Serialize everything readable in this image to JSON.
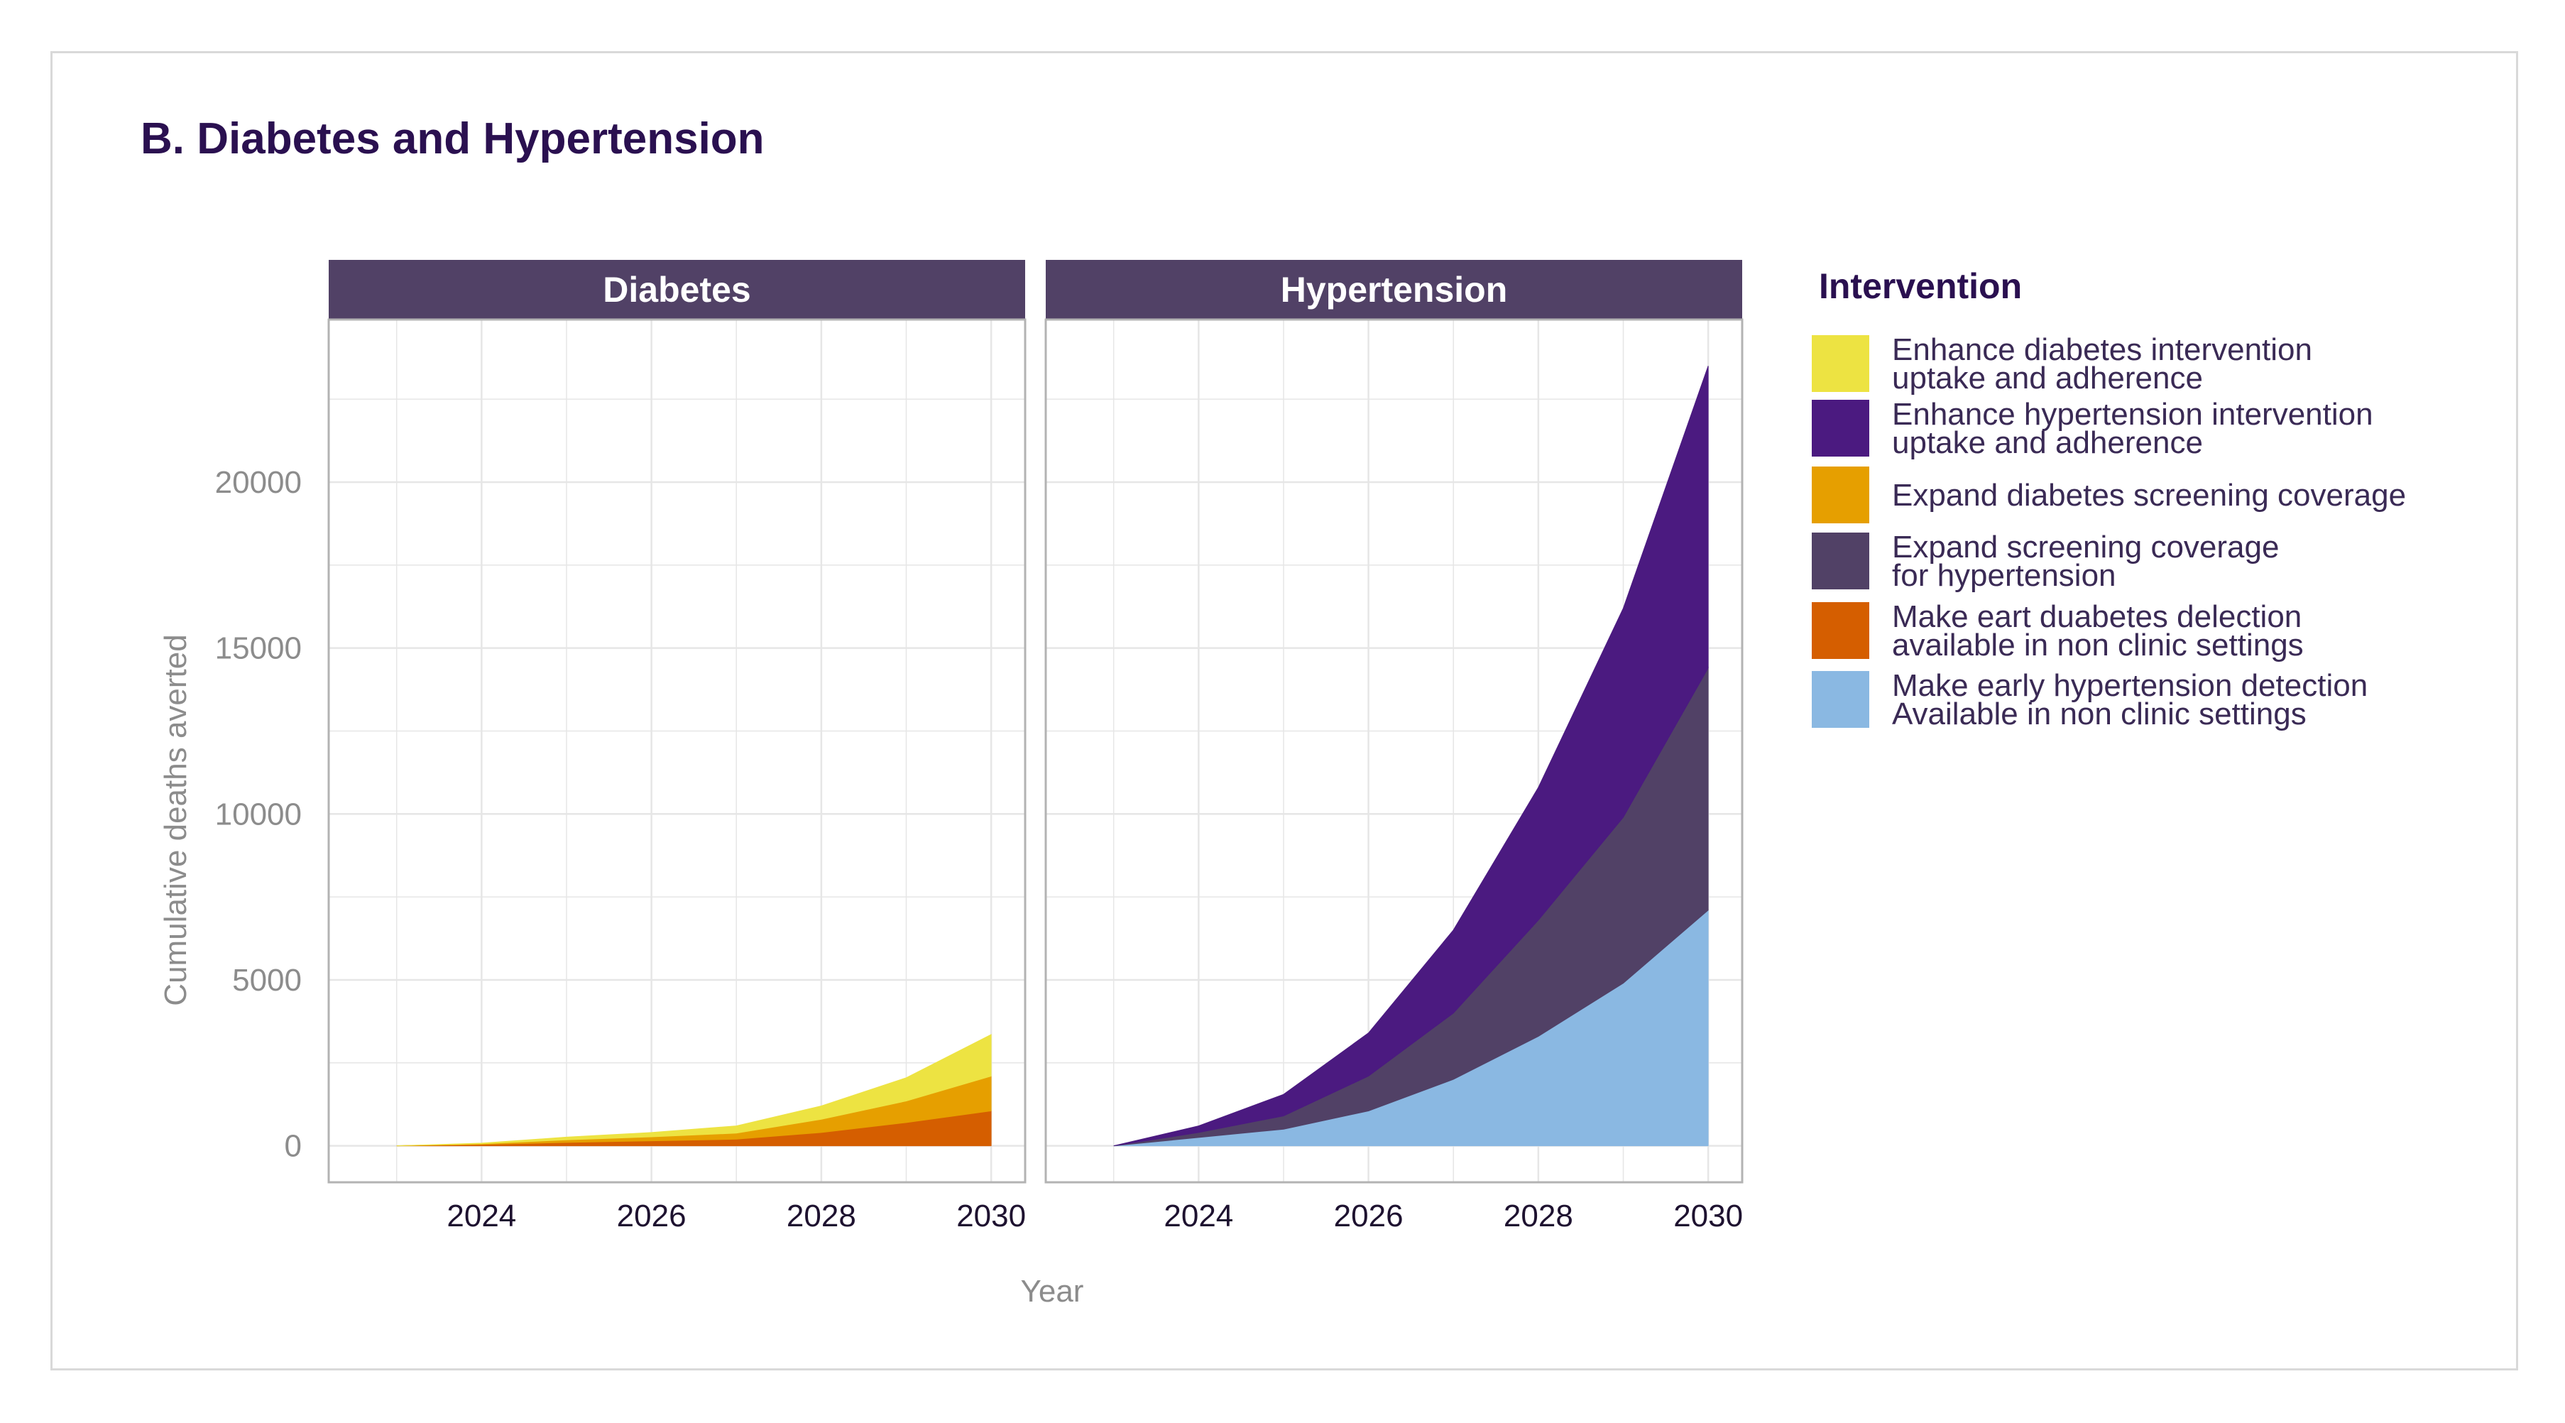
{
  "figure": {
    "title": "B. Diabetes and Hypertension"
  },
  "colors": {
    "strip": "#514166",
    "grid": "#e6e6e6",
    "border": "#b3b3b3"
  },
  "chart_data": {
    "type": "area",
    "stacked": true,
    "xlabel": "Year",
    "ylabel": "Cumulative deaths averted",
    "xlim": [
      2022.2,
      2030.4
    ],
    "ylim": [
      -1100,
      24900
    ],
    "yticks": [
      0,
      5000,
      10000,
      15000,
      20000
    ],
    "xticks": [
      2024,
      2026,
      2028,
      2030
    ],
    "grid": true,
    "legend": {
      "title": "Intervention",
      "placement": "right",
      "entries": [
        {
          "key": "dm_adherence",
          "lines": [
            "Enhance diabetes intervention",
            "uptake and adherence"
          ],
          "color": "#ede342"
        },
        {
          "key": "htn_adherence",
          "lines": [
            "Enhance hypertension intervention",
            "uptake and adherence"
          ],
          "color": "#4b1a80"
        },
        {
          "key": "dm_screening",
          "lines": [
            "Expand diabetes screening coverage"
          ],
          "color": "#e69f00"
        },
        {
          "key": "htn_screening",
          "lines": [
            "Expand screening coverage",
            "for hypertension"
          ],
          "color": "#514166"
        },
        {
          "key": "dm_nonclinic",
          "lines": [
            "Make eart duabetes delection",
            "available in non clinic settings"
          ],
          "color": "#d55e00"
        },
        {
          "key": "htn_nonclinic",
          "lines": [
            "Make early hypertension detection",
            "Available in non clinic settings"
          ],
          "color": "#8ab8e2"
        }
      ]
    },
    "panels": [
      {
        "label": "Diabetes",
        "x": [
          2023,
          2024,
          2025,
          2026,
          2027,
          2028,
          2029,
          2030
        ],
        "series": [
          {
            "name": "Make eart duabetes delection available in non clinic settings",
            "key": "dm_nonclinic",
            "values": [
              0,
              40,
              100,
              150,
              200,
              400,
              700,
              1050
            ]
          },
          {
            "name": "Expand diabetes screening coverage",
            "key": "dm_screening",
            "values": [
              0,
              20,
              80,
              120,
              180,
              400,
              650,
              1050
            ]
          },
          {
            "name": "Enhance diabetes intervention uptake and adherence",
            "key": "dm_adherence",
            "values": [
              0,
              20,
              80,
              130,
              220,
              400,
              700,
              1250
            ]
          }
        ]
      },
      {
        "label": "Hypertension",
        "x": [
          2023,
          2024,
          2025,
          2026,
          2027,
          2028,
          2029,
          2030
        ],
        "series": [
          {
            "name": "Make early hypertension detection Available in non clinic settings",
            "key": "htn_nonclinic",
            "values": [
              0,
              250,
              500,
              1050,
              2000,
              3300,
              4900,
              7100
            ]
          },
          {
            "name": "Expand screening coverage for hypertension",
            "key": "htn_screening",
            "values": [
              0,
              150,
              400,
              1050,
              2000,
              3500,
              5000,
              7300
            ]
          },
          {
            "name": "Enhance hypertension intervention uptake and adherence",
            "key": "htn_adherence",
            "values": [
              0,
              200,
              650,
              1300,
              2500,
              4000,
              6300,
              9100
            ]
          }
        ]
      }
    ]
  }
}
